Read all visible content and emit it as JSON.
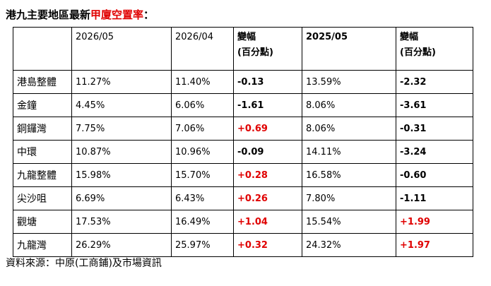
{
  "title": {
    "parts": [
      "港九主要地區最新",
      "甲廈空置率",
      "："
    ]
  },
  "table": {
    "header": [
      "",
      "2026/05",
      "2026/04",
      "變幅\n(百分點)",
      "2025/05",
      "變幅\n(百分點)"
    ],
    "rows": [
      [
        "港島整體",
        "11.27%",
        "11.40%",
        "-0.13",
        "13.59%",
        "-2.32"
      ],
      [
        "金鐘",
        "4.45%",
        "6.06%",
        "-1.61",
        "8.06%",
        "-3.61"
      ],
      [
        "銅鑼灣",
        "7.75%",
        "7.06%",
        "+0.69",
        "8.06%",
        "-0.31"
      ],
      [
        "中環",
        "10.87%",
        "10.96%",
        "-0.09",
        "14.11%",
        "-3.24"
      ],
      [
        "九龍整體",
        "15.98%",
        "15.70%",
        "+0.28",
        "16.58%",
        "-0.60"
      ],
      [
        "尖沙咀",
        "6.69%",
        "6.43%",
        "+0.26",
        "7.80%",
        "-1.11"
      ],
      [
        "觀塘",
        "17.53%",
        "16.49%",
        "+1.04",
        "15.54%",
        "+1.99"
      ],
      [
        "九龍灣",
        "26.29%",
        "25.97%",
        "+0.32",
        "24.32%",
        "+1.97"
      ]
    ]
  },
  "source": "資料來源：中原(工商鋪)及市場資訊"
}
